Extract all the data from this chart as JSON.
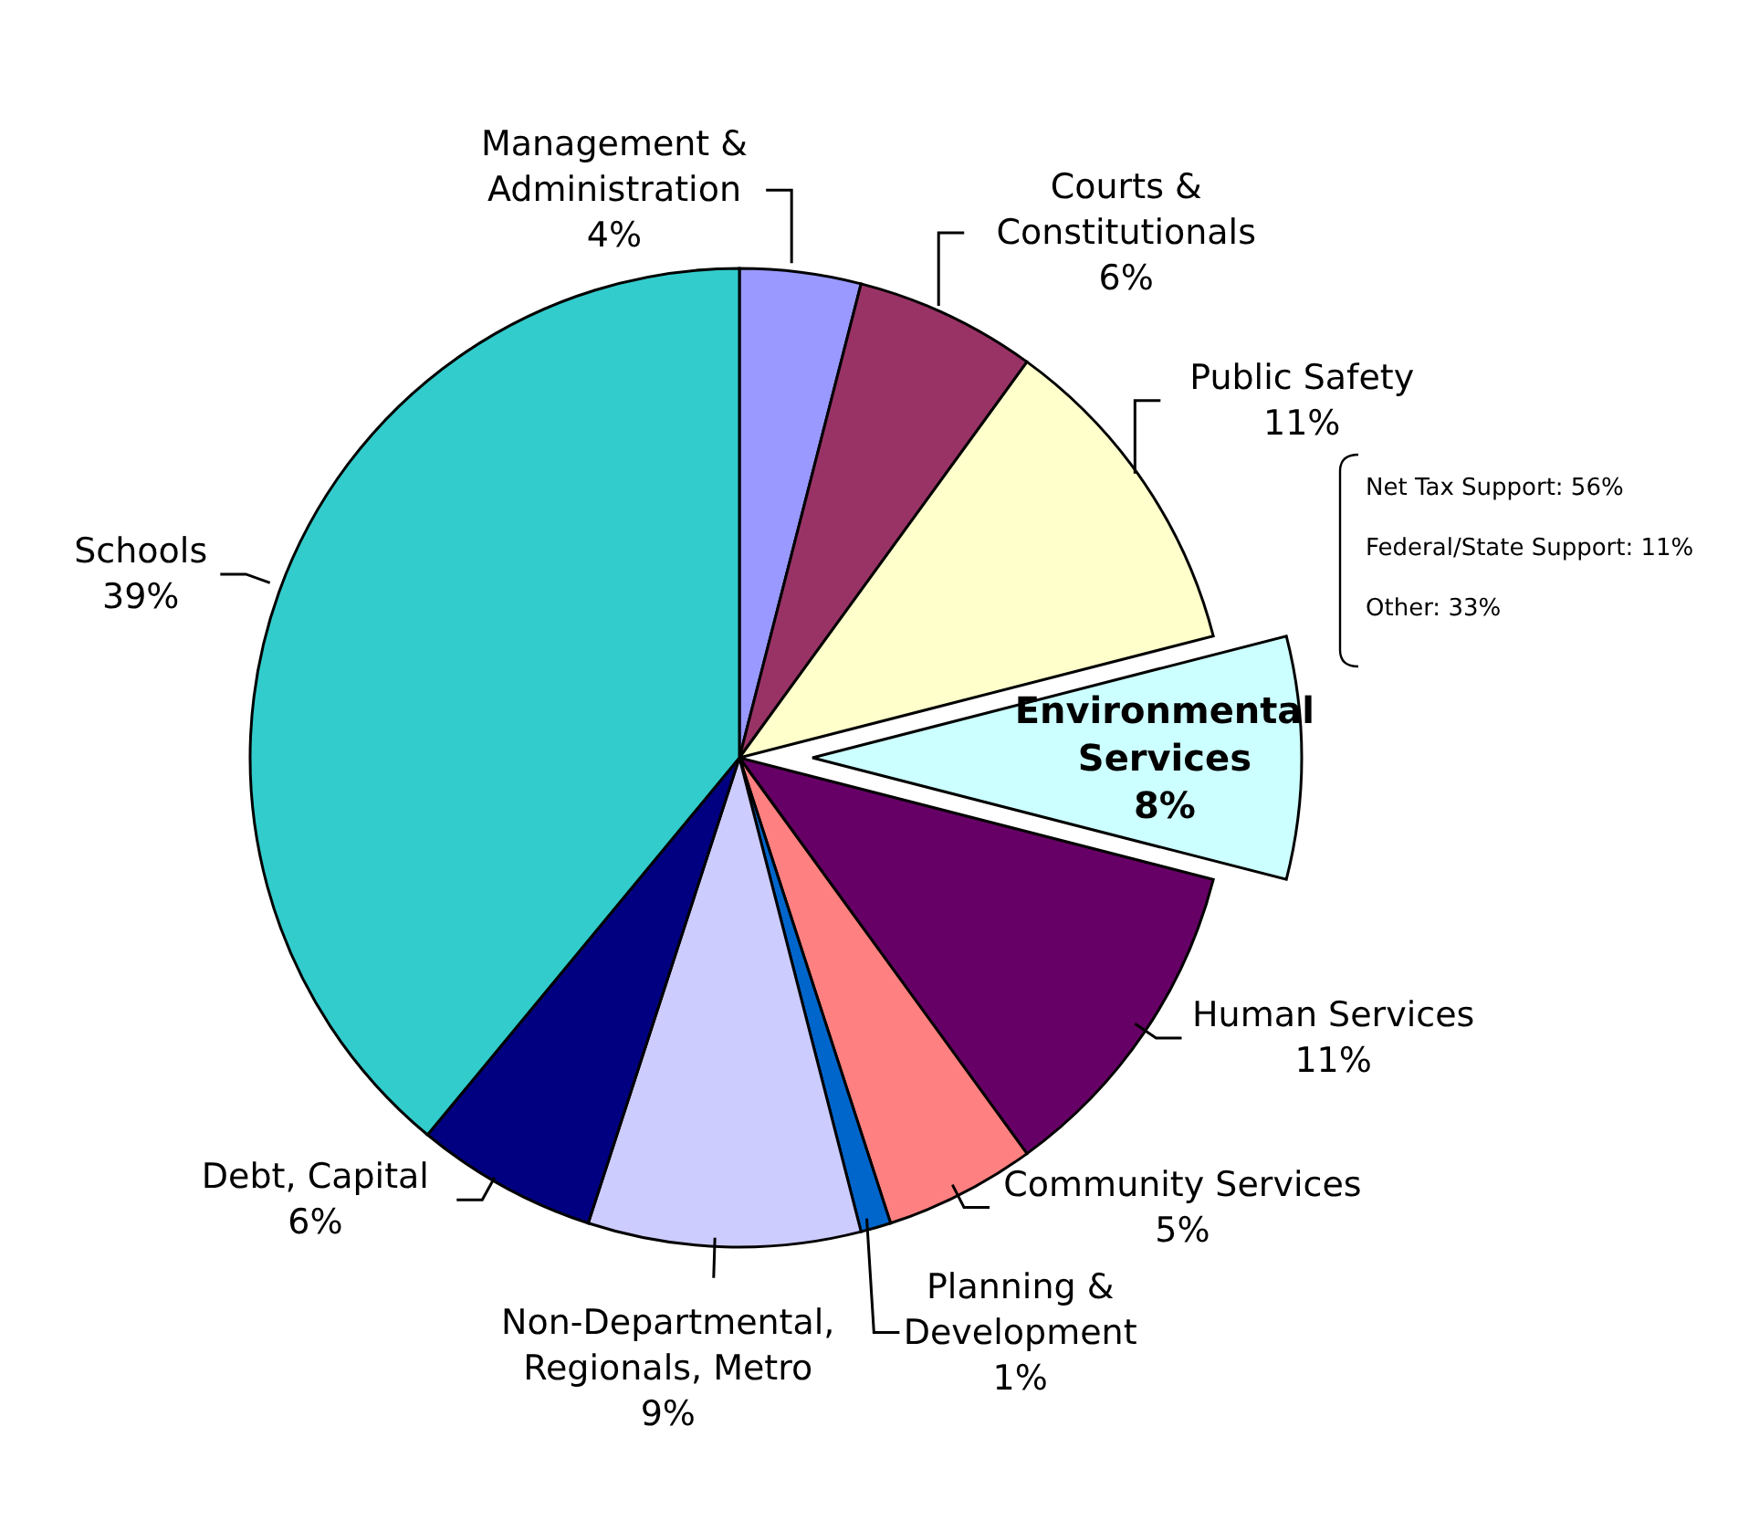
{
  "chart_data": {
    "type": "pie",
    "categories": [
      "Management & Administration",
      "Courts & Constitutionals",
      "Public Safety",
      "Environmental Services",
      "Human Services",
      "Community Services",
      "Planning & Development",
      "Non-Departmental, Regionals, Metro",
      "Debt, Capital",
      "Schools"
    ],
    "values": [
      4,
      6,
      11,
      8,
      11,
      5,
      1,
      9,
      6,
      39
    ],
    "value_labels": [
      "4%",
      "6%",
      "11%",
      "8%",
      "11%",
      "5%",
      "1%",
      "9%",
      "6%",
      "39%"
    ],
    "colors": [
      "#9999ff",
      "#993366",
      "#ffffcc",
      "#ccffff",
      "#660066",
      "#ff8080",
      "#0066cc",
      "#ccccff",
      "#000080",
      "#33cccc"
    ],
    "annotations": [
      {
        "text": "Net Tax Support: 56%",
        "x": "Environmental Services"
      },
      {
        "text": "Federal/State Support: 11%",
        "x": "Environmental Services"
      },
      {
        "text": "Other: 33%",
        "x": "Environmental Services"
      }
    ],
    "legend": false
  }
}
